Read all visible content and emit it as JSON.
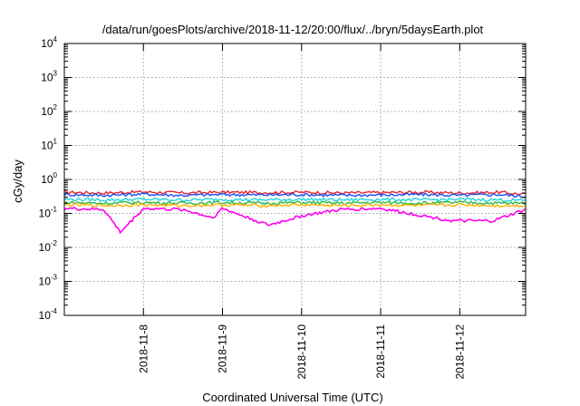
{
  "chart_data": {
    "type": "line",
    "title": "/data/run/goesPlots/archive/2018-11-12/20:00/flux/../bryn/5daysEarth.plot",
    "xlabel": "Coordinated Universal Time (UTC)",
    "ylabel": "cGy/day",
    "yscale": "log",
    "ylim": [
      0.0001,
      10000
    ],
    "xlim": [
      "2018-11-07T00:00",
      "2018-11-12T20:00"
    ],
    "y_ticks": [
      {
        "base": "10",
        "exp": "-4"
      },
      {
        "base": "10",
        "exp": "-3"
      },
      {
        "base": "10",
        "exp": "-2"
      },
      {
        "base": "10",
        "exp": "-1"
      },
      {
        "base": "10",
        "exp": "0"
      },
      {
        "base": "10",
        "exp": "1"
      },
      {
        "base": "10",
        "exp": "2"
      },
      {
        "base": "10",
        "exp": "3"
      },
      {
        "base": "10",
        "exp": "4"
      }
    ],
    "x_ticks": [
      {
        "label": "2018-11-8",
        "date": "2018-11-08T00:00"
      },
      {
        "label": "2018-11-9",
        "date": "2018-11-09T00:00"
      },
      {
        "label": "2018-11-10",
        "date": "2018-11-10T00:00"
      },
      {
        "label": "2018-11-11",
        "date": "2018-11-11T00:00"
      },
      {
        "label": "2018-11-12",
        "date": "2018-11-12T00:00"
      }
    ],
    "grid": true,
    "legend": "none",
    "series": [
      {
        "color": "#e8232d",
        "values": [
          [
            "2018-11-07T00:00",
            0.42
          ],
          [
            "2018-11-07T12:00",
            0.4
          ],
          [
            "2018-11-08T00:00",
            0.43
          ],
          [
            "2018-11-08T12:00",
            0.4
          ],
          [
            "2018-11-09T00:00",
            0.42
          ],
          [
            "2018-11-09T12:00",
            0.41
          ],
          [
            "2018-11-10T00:00",
            0.42
          ],
          [
            "2018-11-10T12:00",
            0.4
          ],
          [
            "2018-11-11T00:00",
            0.41
          ],
          [
            "2018-11-11T12:00",
            0.42
          ],
          [
            "2018-11-12T00:00",
            0.4
          ],
          [
            "2018-11-12T12:00",
            0.42
          ],
          [
            "2018-11-12T20:00",
            0.36
          ]
        ]
      },
      {
        "color": "#1a4ff5",
        "values": [
          [
            "2018-11-07T00:00",
            0.36
          ],
          [
            "2018-11-07T12:00",
            0.34
          ],
          [
            "2018-11-08T00:00",
            0.37
          ],
          [
            "2018-11-08T12:00",
            0.34
          ],
          [
            "2018-11-09T00:00",
            0.36
          ],
          [
            "2018-11-09T12:00",
            0.35
          ],
          [
            "2018-11-10T00:00",
            0.36
          ],
          [
            "2018-11-10T12:00",
            0.34
          ],
          [
            "2018-11-11T00:00",
            0.35
          ],
          [
            "2018-11-11T12:00",
            0.36
          ],
          [
            "2018-11-12T00:00",
            0.34
          ],
          [
            "2018-11-12T12:00",
            0.36
          ],
          [
            "2018-11-12T20:00",
            0.31
          ]
        ]
      },
      {
        "color": "#22d3d8",
        "values": [
          [
            "2018-11-07T00:00",
            0.26
          ],
          [
            "2018-11-07T12:00",
            0.25
          ],
          [
            "2018-11-08T00:00",
            0.26
          ],
          [
            "2018-11-08T12:00",
            0.25
          ],
          [
            "2018-11-09T00:00",
            0.26
          ],
          [
            "2018-11-09T12:00",
            0.25
          ],
          [
            "2018-11-10T00:00",
            0.26
          ],
          [
            "2018-11-10T12:00",
            0.25
          ],
          [
            "2018-11-11T00:00",
            0.26
          ],
          [
            "2018-11-11T12:00",
            0.25
          ],
          [
            "2018-11-12T00:00",
            0.26
          ],
          [
            "2018-11-12T12:00",
            0.25
          ],
          [
            "2018-11-12T20:00",
            0.24
          ]
        ]
      },
      {
        "color": "#2bb84a",
        "values": [
          [
            "2018-11-07T00:00",
            0.21
          ],
          [
            "2018-11-07T12:00",
            0.2
          ],
          [
            "2018-11-08T00:00",
            0.21
          ],
          [
            "2018-11-08T12:00",
            0.2
          ],
          [
            "2018-11-09T00:00",
            0.21
          ],
          [
            "2018-11-09T12:00",
            0.2
          ],
          [
            "2018-11-10T00:00",
            0.21
          ],
          [
            "2018-11-10T12:00",
            0.2
          ],
          [
            "2018-11-11T00:00",
            0.21
          ],
          [
            "2018-11-11T12:00",
            0.2
          ],
          [
            "2018-11-12T00:00",
            0.21
          ],
          [
            "2018-11-12T12:00",
            0.2
          ],
          [
            "2018-11-12T20:00",
            0.2
          ]
        ]
      },
      {
        "color": "#ffb000",
        "values": [
          [
            "2018-11-07T00:00",
            0.18
          ],
          [
            "2018-11-07T12:00",
            0.17
          ],
          [
            "2018-11-08T00:00",
            0.18
          ],
          [
            "2018-11-08T12:00",
            0.17
          ],
          [
            "2018-11-09T00:00",
            0.18
          ],
          [
            "2018-11-09T12:00",
            0.17
          ],
          [
            "2018-11-10T00:00",
            0.18
          ],
          [
            "2018-11-10T12:00",
            0.17
          ],
          [
            "2018-11-11T00:00",
            0.18
          ],
          [
            "2018-11-11T12:00",
            0.17
          ],
          [
            "2018-11-12T00:00",
            0.18
          ],
          [
            "2018-11-12T12:00",
            0.17
          ],
          [
            "2018-11-12T20:00",
            0.17
          ]
        ]
      },
      {
        "color": "#ff00ee",
        "values": [
          [
            "2018-11-07T00:00",
            0.14
          ],
          [
            "2018-11-07T12:00",
            0.13
          ],
          [
            "2018-11-07T17:00",
            0.028
          ],
          [
            "2018-11-08T00:00",
            0.14
          ],
          [
            "2018-11-08T12:00",
            0.13
          ],
          [
            "2018-11-08T21:00",
            0.075
          ],
          [
            "2018-11-09T00:00",
            0.14
          ],
          [
            "2018-11-09T14:00",
            0.045
          ],
          [
            "2018-11-10T00:00",
            0.085
          ],
          [
            "2018-11-10T12:00",
            0.13
          ],
          [
            "2018-11-11T00:00",
            0.14
          ],
          [
            "2018-11-11T22:00",
            0.06
          ],
          [
            "2018-11-12T10:00",
            0.06
          ],
          [
            "2018-11-12T20:00",
            0.13
          ]
        ]
      }
    ]
  }
}
